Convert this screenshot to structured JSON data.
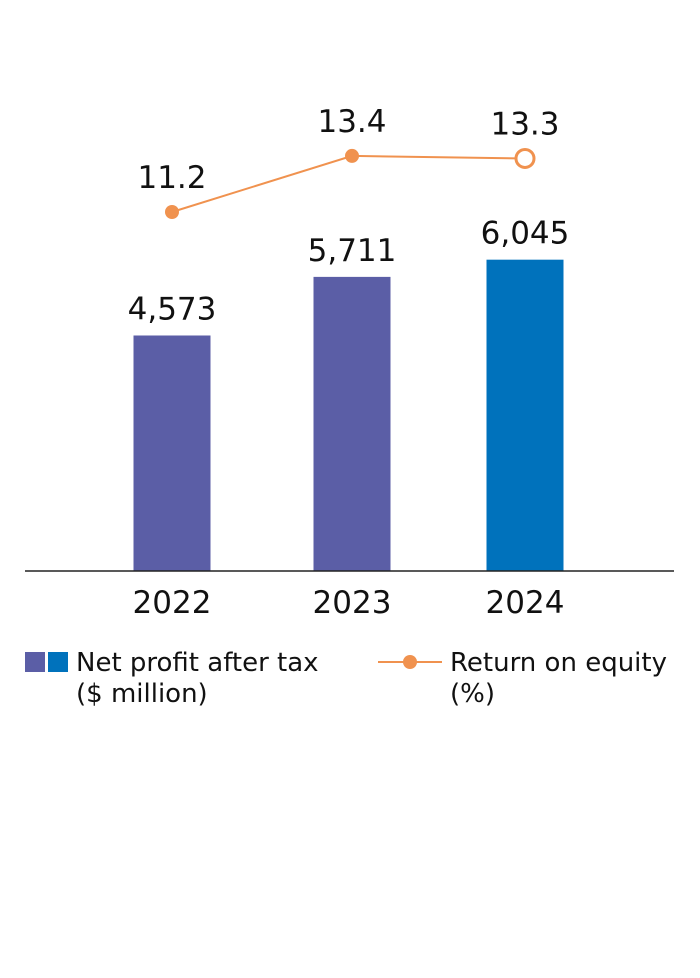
{
  "chart_data": {
    "type": "bar",
    "categories": [
      "2022",
      "2023",
      "2024"
    ],
    "series": [
      {
        "name": "Net profit after tax ($ million)",
        "type": "bar",
        "values": [
          4573,
          5711,
          6045
        ],
        "labels": [
          "4,573",
          "5,711",
          "6,045"
        ],
        "colors": [
          "#5b5ea6",
          "#5b5ea6",
          "#0072bc"
        ]
      },
      {
        "name": "Return on equity (%)",
        "type": "line",
        "values": [
          11.2,
          13.4,
          13.3
        ],
        "labels": [
          "11.2",
          "13.4",
          "13.3"
        ],
        "color": "#f0924f",
        "last_point_hollow": true
      }
    ],
    "legend": {
      "position": "bottom",
      "bar_line1": "Net profit after tax",
      "bar_line2": "($ million)",
      "line_line1": "Return on equity",
      "line_line2": "(%)"
    }
  }
}
